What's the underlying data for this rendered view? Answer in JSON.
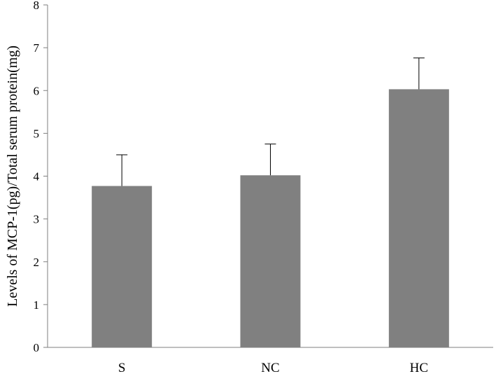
{
  "chart_data": {
    "type": "bar",
    "categories": [
      "S",
      "NC",
      "HC"
    ],
    "values": [
      3.77,
      4.02,
      6.03
    ],
    "error_upper": [
      0.73,
      0.73,
      0.73
    ],
    "ylabel": "Levels of MCP-1(pg)/Total serum protein(mg)",
    "xlabel": "",
    "ylim": [
      0,
      8
    ],
    "yticks": [
      0,
      1,
      2,
      3,
      4,
      5,
      6,
      7,
      8
    ],
    "bar_color": "#808080",
    "grid": false,
    "legend": "none"
  }
}
